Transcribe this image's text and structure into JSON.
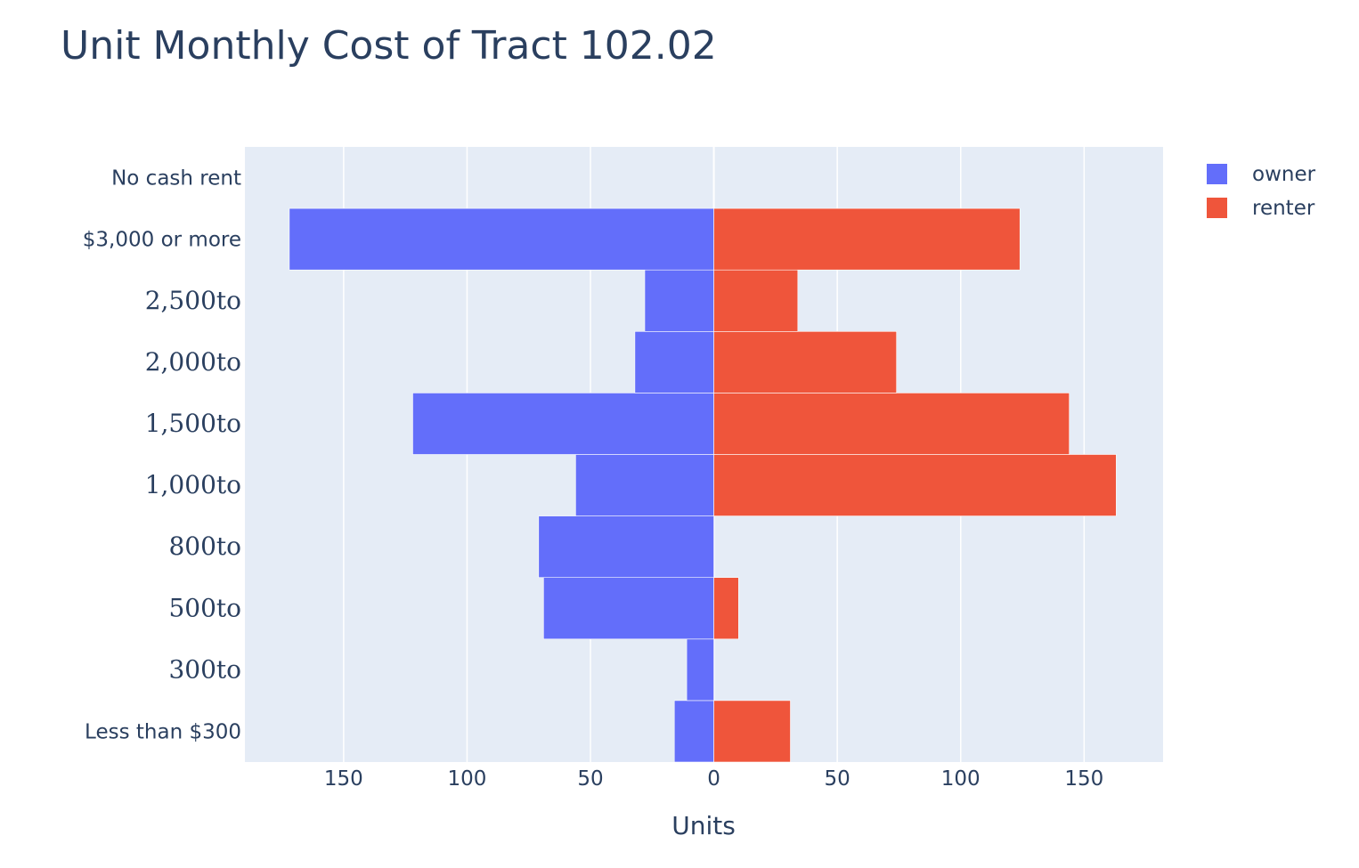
{
  "chart_data": {
    "type": "bar",
    "orientation": "horizontal",
    "layout": "diverging",
    "title": "Unit Monthly Cost of Tract 102.02",
    "xlabel": "Units",
    "ylabel": "",
    "xlim": [
      -190,
      182
    ],
    "x_ticks": [
      -150,
      -100,
      -50,
      0,
      50,
      100,
      150
    ],
    "x_tick_labels": [
      "150",
      "100",
      "50",
      "0",
      "50",
      "100",
      "150"
    ],
    "categories": [
      "Less than $300",
      "300to",
      "500to",
      "800to",
      "1,000to",
      "1,500to",
      "2,000to",
      "2,500to",
      "$3,000 or more",
      "No cash rent"
    ],
    "category_styles": [
      "plain",
      "math",
      "math",
      "math",
      "math",
      "math",
      "math",
      "math",
      "plain",
      "plain"
    ],
    "series": [
      {
        "name": "owner",
        "color": "#636efa",
        "values": [
          -16,
          -11,
          -69,
          -71,
          -56,
          -122,
          -32,
          -28,
          -172,
          0
        ]
      },
      {
        "name": "renter",
        "color": "#ef553b",
        "values": [
          31,
          0,
          10,
          0,
          163,
          144,
          74,
          34,
          124,
          0
        ]
      }
    ],
    "grid": true,
    "legend_position": "top-right",
    "colors": {
      "plot_bg": "#e5ecf6",
      "grid": "#ffffff",
      "text": "#2a3f5f"
    }
  }
}
